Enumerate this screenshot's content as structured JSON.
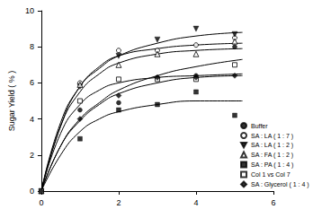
{
  "chart_data": {
    "type": "scatter",
    "y_label": "Sugar Yield ( % )",
    "xlim": [
      0,
      6
    ],
    "xticks": [
      0,
      2,
      4,
      6
    ],
    "ylim": [
      0,
      10
    ],
    "yticks": [
      0,
      2,
      4,
      6,
      8,
      10
    ],
    "grid": false,
    "legend": "right",
    "series": [
      {
        "name": "Buffer",
        "color": "#000000",
        "marker": "circle",
        "x": [
          0,
          1,
          2,
          3,
          4,
          5
        ],
        "values": [
          0,
          4.5,
          4.9,
          6.3,
          6.4,
          8.0
        ],
        "fit": {
          "x": [
            0,
            0.5,
            1,
            1.5,
            2,
            3,
            4,
            5.2
          ],
          "values": [
            0,
            2.5,
            4.0,
            4.9,
            5.6,
            6.4,
            6.9,
            7.3
          ]
        }
      },
      {
        "name": "SA : LA ( 1 : 7 )",
        "color": "#000000",
        "marker": "open_circle",
        "x": [
          0,
          1,
          2,
          3,
          4,
          5
        ],
        "values": [
          0,
          6.0,
          7.8,
          7.8,
          8.1,
          8.5
        ],
        "fit": {
          "x": [
            0,
            0.5,
            1,
            1.5,
            2,
            3,
            4,
            5.2
          ],
          "values": [
            0,
            3.8,
            5.8,
            6.9,
            7.5,
            7.9,
            8.1,
            8.2
          ]
        }
      },
      {
        "name": "SA : LA ( 1 : 2 )",
        "color": "#000000",
        "marker": "triangle_down",
        "x": [
          0,
          1,
          2,
          3,
          4,
          5
        ],
        "values": [
          0,
          5.8,
          7.5,
          8.4,
          9.0,
          8.7
        ],
        "fit": {
          "x": [
            0,
            0.5,
            1,
            1.5,
            2,
            3,
            4,
            5.2
          ],
          "values": [
            0,
            3.6,
            5.8,
            6.8,
            7.5,
            8.2,
            8.6,
            8.8
          ]
        }
      },
      {
        "name": "SA : FA ( 1 : 2 )",
        "color": "#000000",
        "marker": "open_triangle",
        "x": [
          0,
          1,
          2,
          3,
          4,
          5
        ],
        "values": [
          0,
          5.9,
          7.0,
          7.6,
          7.6,
          8.3
        ],
        "fit": {
          "x": [
            0,
            0.5,
            1,
            1.5,
            2,
            3,
            4,
            5.2
          ],
          "values": [
            0,
            3.6,
            5.5,
            6.5,
            7.1,
            7.6,
            7.8,
            7.9
          ]
        }
      },
      {
        "name": "SA : PA ( 1 : 4 )",
        "color": "#000000",
        "marker": "square",
        "x": [
          0,
          1,
          2,
          3,
          4,
          5
        ],
        "values": [
          0,
          2.9,
          4.5,
          4.8,
          5.5,
          4.2
        ],
        "fit": {
          "x": [
            0,
            0.5,
            1,
            1.5,
            2,
            3,
            4,
            5.2
          ],
          "values": [
            0,
            2.0,
            3.3,
            4.0,
            4.4,
            4.8,
            5.0,
            5.0
          ]
        }
      },
      {
        "name": "Col 1 vs Col 7",
        "color": "#000000",
        "marker": "open_square",
        "x": [
          0,
          1,
          2,
          3,
          4,
          5
        ],
        "values": [
          0,
          5.0,
          6.2,
          6.2,
          6.2,
          7.0
        ],
        "fit": {
          "x": [
            0,
            0.5,
            1,
            1.5,
            2,
            3,
            4,
            5.2
          ],
          "values": [
            0,
            3.2,
            4.8,
            5.6,
            6.0,
            6.3,
            6.4,
            6.5
          ]
        }
      },
      {
        "name": "SA : Glycerol ( 1 : 4 )",
        "color": "#000000",
        "marker": "diamond",
        "x": [
          0,
          1,
          2,
          3,
          4,
          5
        ],
        "values": [
          0,
          4.0,
          5.3,
          6.3,
          6.3,
          6.4
        ],
        "fit": {
          "x": [
            0,
            0.5,
            1,
            1.5,
            2,
            3,
            4,
            5.2
          ],
          "values": [
            0,
            2.5,
            3.9,
            4.8,
            5.4,
            6.0,
            6.3,
            6.4
          ]
        }
      }
    ]
  }
}
